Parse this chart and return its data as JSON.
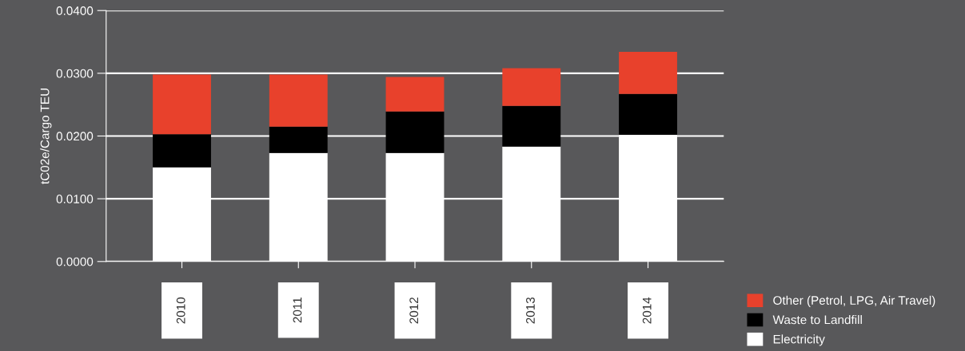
{
  "chart_data": {
    "type": "bar",
    "stacked": true,
    "ylabel": "tC02e/Cargo TEU",
    "categories": [
      "2010",
      "2011",
      "2012",
      "2013",
      "2014"
    ],
    "series": [
      {
        "name": "Electricity",
        "color": "#ffffff",
        "values": [
          0.015,
          0.0173,
          0.0173,
          0.0183,
          0.0202
        ]
      },
      {
        "name": "Waste to Landfill",
        "color": "#000000",
        "values": [
          0.0053,
          0.0042,
          0.0066,
          0.0065,
          0.0065
        ]
      },
      {
        "name": "Other (Petrol, LPG, Air Travel)",
        "color": "#e8412c",
        "values": [
          0.0095,
          0.0083,
          0.0055,
          0.006,
          0.0067
        ]
      }
    ],
    "ylim": [
      0,
      0.04
    ],
    "yticks": [
      {
        "value": 0,
        "label": "0.0000"
      },
      {
        "value": 0.01,
        "label": "0.0100"
      },
      {
        "value": 0.02,
        "label": "0.0200"
      },
      {
        "value": 0.03,
        "label": "0.0300"
      },
      {
        "value": 0.04,
        "label": "0.0400"
      }
    ],
    "grid": "y",
    "legend": "bottom right"
  }
}
